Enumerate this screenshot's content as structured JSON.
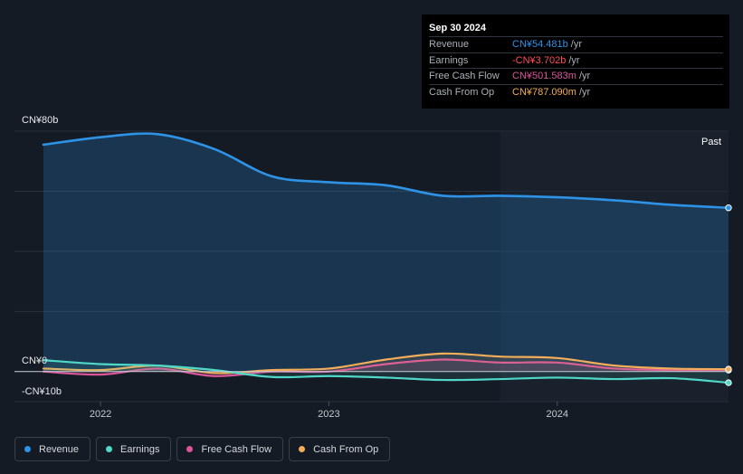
{
  "tooltip": {
    "date": "Sep 30 2024",
    "rows": [
      {
        "label": "Revenue",
        "value": "CN¥54.481b",
        "unit": "/yr",
        "color": "#2e93e6"
      },
      {
        "label": "Earnings",
        "value": "-CN¥3.702b",
        "unit": "/yr",
        "color": "#ff4d55"
      },
      {
        "label": "Free Cash Flow",
        "value": "CN¥501.583m",
        "unit": "/yr",
        "color": "#d9569b"
      },
      {
        "label": "Cash From Op",
        "value": "CN¥787.090m",
        "unit": "/yr",
        "color": "#f2ad5a"
      }
    ]
  },
  "past_label": "Past",
  "legend": [
    {
      "label": "Revenue",
      "color": "#2e93e6"
    },
    {
      "label": "Earnings",
      "color": "#4fd8c8"
    },
    {
      "label": "Free Cash Flow",
      "color": "#d9569b"
    },
    {
      "label": "Cash From Op",
      "color": "#f2ad5a"
    }
  ],
  "chart_data": {
    "type": "line",
    "unit": "CN¥ b",
    "ylim": [
      -10,
      80
    ],
    "y_tick_labels": [
      {
        "value": 80,
        "label": "CN¥80b"
      },
      {
        "value": 0,
        "label": "CN¥0"
      },
      {
        "value": -10,
        "label": "-CN¥10b"
      }
    ],
    "x_ticks": [
      {
        "value": 2022.0,
        "label": "2022"
      },
      {
        "value": 2023.0,
        "label": "2023"
      },
      {
        "value": 2024.0,
        "label": "2024"
      }
    ],
    "x_range": [
      2021.5,
      2024.75
    ],
    "past_start": 2023.75,
    "series": [
      {
        "name": "Revenue",
        "color": "#2e93e6",
        "area": true,
        "x": [
          2021.75,
          2022.0,
          2022.25,
          2022.5,
          2022.75,
          2023.0,
          2023.25,
          2023.5,
          2023.75,
          2024.0,
          2024.25,
          2024.5,
          2024.75
        ],
        "y": [
          75.5,
          78,
          79,
          74,
          65,
          63,
          62,
          58.5,
          58.5,
          58,
          57,
          55.5,
          54.5
        ]
      },
      {
        "name": "Earnings",
        "color": "#4fd8c8",
        "x": [
          2021.75,
          2022.0,
          2022.25,
          2022.5,
          2022.75,
          2023.0,
          2023.25,
          2023.5,
          2023.75,
          2024.0,
          2024.25,
          2024.5,
          2024.75
        ],
        "y": [
          3.8,
          2.5,
          2.0,
          0.5,
          -1.8,
          -1.5,
          -2.0,
          -2.8,
          -2.5,
          -2.0,
          -2.5,
          -2.2,
          -3.7
        ]
      },
      {
        "name": "Free Cash Flow",
        "color": "#d9569b",
        "x": [
          2021.75,
          2022.0,
          2022.25,
          2022.5,
          2022.75,
          2023.0,
          2023.25,
          2023.5,
          2023.75,
          2024.0,
          2024.25,
          2024.5,
          2024.75
        ],
        "y": [
          0.0,
          -1.0,
          1.0,
          -1.5,
          0.0,
          0.0,
          2.5,
          4.0,
          3.0,
          3.0,
          1.0,
          0.5,
          0.5
        ]
      },
      {
        "name": "Cash From Op",
        "color": "#f2ad5a",
        "x": [
          2021.75,
          2022.0,
          2022.25,
          2022.5,
          2022.75,
          2023.0,
          2023.25,
          2023.5,
          2023.75,
          2024.0,
          2024.25,
          2024.5,
          2024.75
        ],
        "y": [
          1.0,
          0.5,
          2.0,
          -0.5,
          0.5,
          1.0,
          4.0,
          6.0,
          5.0,
          4.5,
          2.0,
          1.0,
          0.8
        ]
      }
    ]
  }
}
